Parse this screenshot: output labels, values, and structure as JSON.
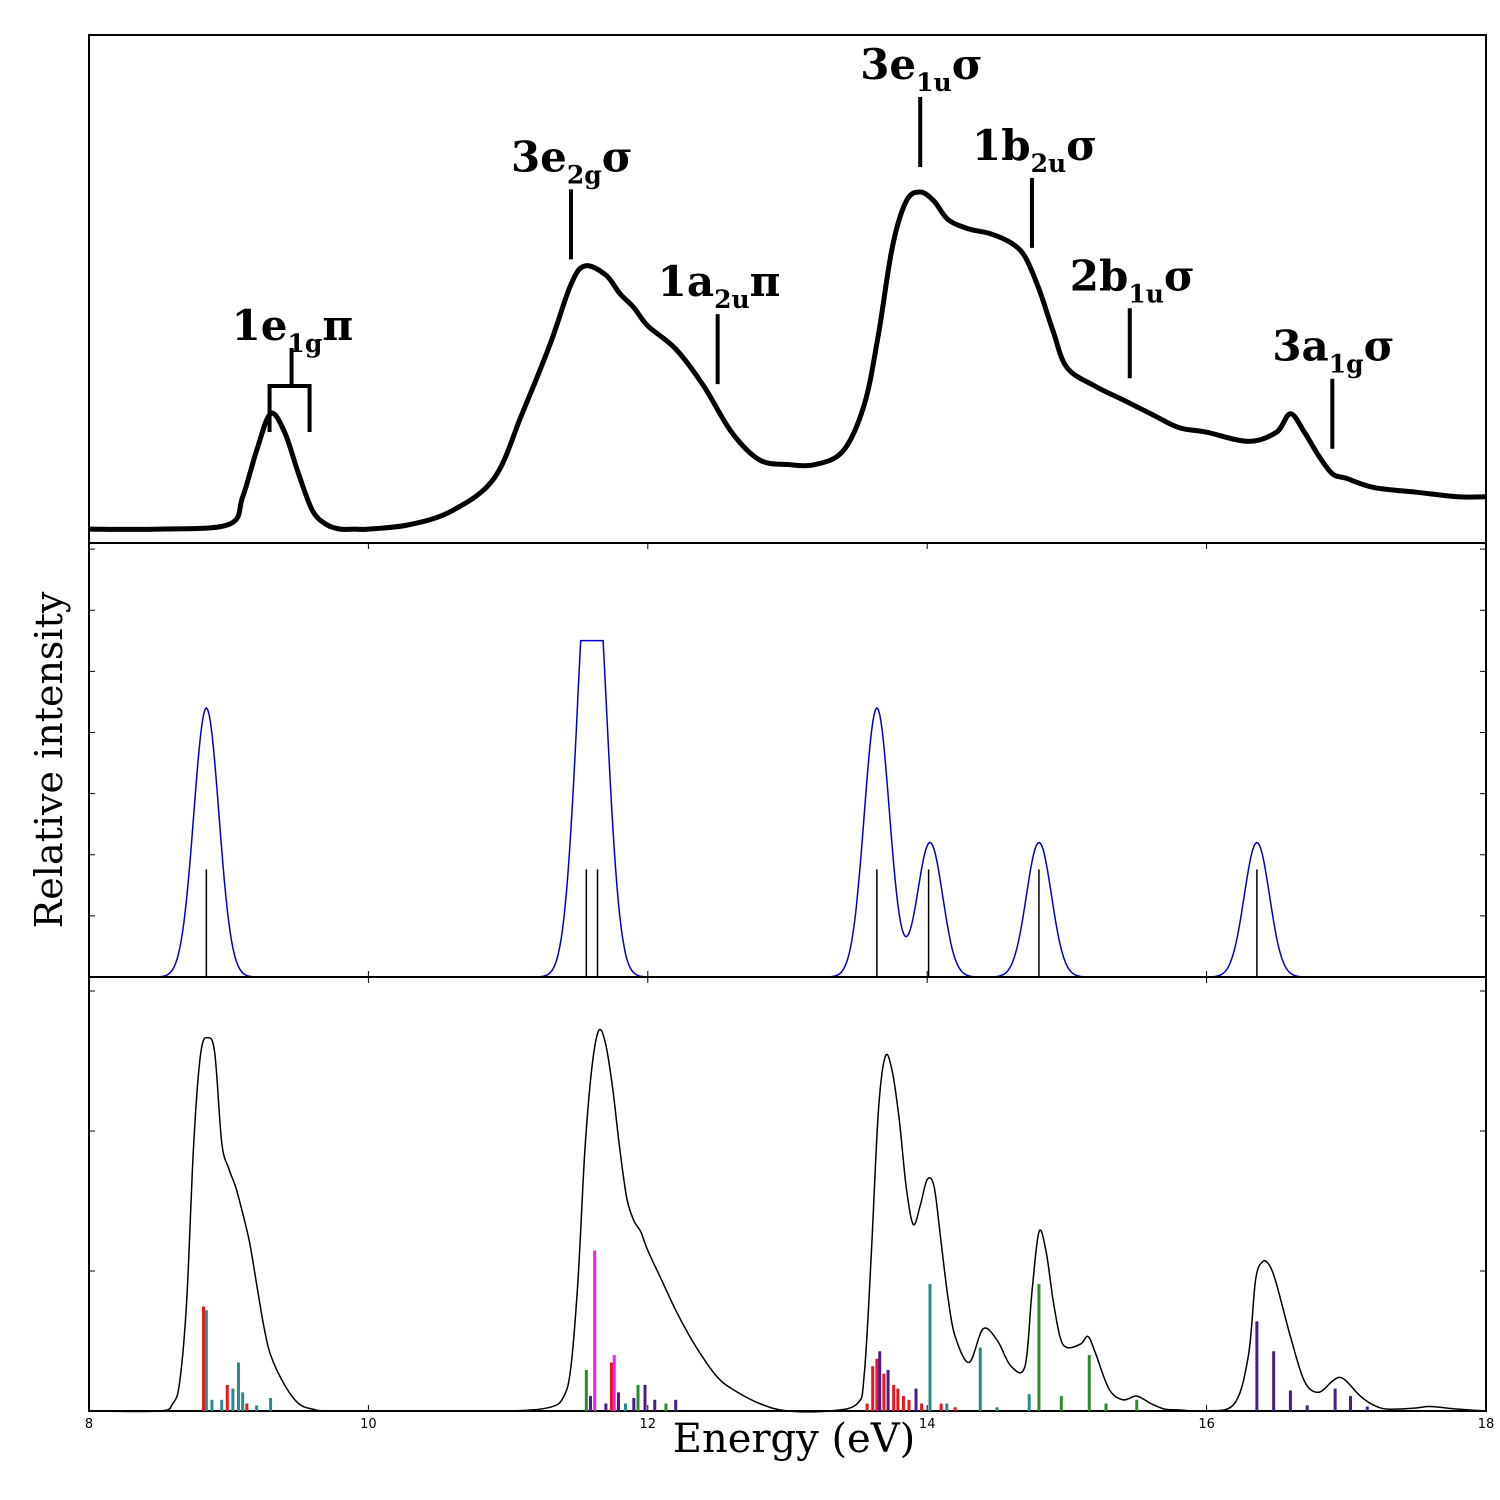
{
  "ylabel": "Relative intensity",
  "xlabel": "Energy (eV)",
  "xlim": [
    8,
    18
  ],
  "x_ticks": [
    8,
    10,
    12,
    14,
    16,
    18
  ],
  "colors": {
    "experiment": "#000000",
    "convolved": "#0000cc",
    "sticks": "#000000",
    "red": "#e8141e",
    "teal": "#2a8a8a",
    "green": "#2c8c2c",
    "purple": "#4b1a8c",
    "magenta": "#ee22ee"
  },
  "chart_data": [
    {
      "type": "line",
      "panel": "experimental spectrum",
      "ylim": [
        0,
        1.1
      ],
      "x": [
        8.0,
        8.5,
        9.0,
        9.1,
        9.2,
        9.3,
        9.4,
        9.5,
        9.6,
        9.7,
        9.8,
        9.9,
        10.0,
        10.3,
        10.6,
        10.9,
        11.1,
        11.3,
        11.45,
        11.55,
        11.7,
        11.8,
        11.9,
        12.0,
        12.2,
        12.4,
        12.6,
        12.8,
        13.0,
        13.2,
        13.4,
        13.55,
        13.65,
        13.75,
        13.85,
        13.95,
        14.05,
        14.15,
        14.3,
        14.45,
        14.6,
        14.7,
        14.8,
        14.9,
        15.0,
        15.2,
        15.4,
        15.6,
        15.8,
        16.0,
        16.3,
        16.5,
        16.6,
        16.7,
        16.8,
        16.9,
        17.0,
        17.2,
        17.5,
        17.8,
        18.0
      ],
      "y": [
        0.03,
        0.03,
        0.04,
        0.1,
        0.2,
        0.28,
        0.24,
        0.15,
        0.07,
        0.04,
        0.03,
        0.03,
        0.03,
        0.04,
        0.07,
        0.14,
        0.28,
        0.43,
        0.56,
        0.6,
        0.58,
        0.54,
        0.51,
        0.47,
        0.42,
        0.34,
        0.24,
        0.18,
        0.17,
        0.17,
        0.2,
        0.3,
        0.45,
        0.64,
        0.74,
        0.76,
        0.74,
        0.7,
        0.68,
        0.67,
        0.65,
        0.62,
        0.55,
        0.46,
        0.38,
        0.34,
        0.31,
        0.28,
        0.25,
        0.24,
        0.22,
        0.24,
        0.28,
        0.24,
        0.19,
        0.15,
        0.14,
        0.12,
        0.11,
        0.1,
        0.1
      ],
      "annotations": [
        {
          "text": "1e",
          "sub": "1g",
          "tail": "π",
          "x": 9.45
        },
        {
          "text": "3e",
          "sub": "2g",
          "tail": "σ",
          "x": 11.45
        },
        {
          "text": "1a",
          "sub": "2u",
          "tail": "π",
          "x": 12.5
        },
        {
          "text": "3e",
          "sub": "1u",
          "tail": "σ",
          "x": 13.95
        },
        {
          "text": "1b",
          "sub": "2u",
          "tail": "σ",
          "x": 14.75
        },
        {
          "text": "2b",
          "sub": "1u",
          "tail": "σ",
          "x": 15.45
        },
        {
          "text": "3a",
          "sub": "1g",
          "tail": "σ",
          "x": 16.9
        }
      ]
    },
    {
      "type": "line",
      "panel": "convolved theoretical spectrum with stick lines",
      "ylim": [
        0,
        1.0
      ],
      "series": [
        {
          "kind": "gaussian-sum",
          "width": 0.09,
          "peaks": [
            {
              "x": 8.84,
              "height": 1.0
            },
            {
              "x": 11.56,
              "height": 0.95
            },
            {
              "x": 11.64,
              "height": 0.95
            },
            {
              "x": 13.64,
              "height": 1.0
            },
            {
              "x": 14.02,
              "height": 0.5
            },
            {
              "x": 14.8,
              "height": 0.5
            },
            {
              "x": 16.36,
              "height": 0.5
            }
          ]
        }
      ],
      "sticks": [
        {
          "x": 8.84,
          "y": 0.4
        },
        {
          "x": 11.56,
          "y": 0.4
        },
        {
          "x": 11.64,
          "y": 0.4
        },
        {
          "x": 13.64,
          "y": 0.4
        },
        {
          "x": 14.01,
          "y": 0.4
        },
        {
          "x": 14.8,
          "y": 0.4
        },
        {
          "x": 16.36,
          "y": 0.4
        }
      ]
    },
    {
      "type": "line",
      "panel": "simulated spectrum with coloured sticks",
      "ylim": [
        0,
        1.0
      ],
      "envelope": {
        "x": [
          8.0,
          8.5,
          8.6,
          8.65,
          8.7,
          8.75,
          8.8,
          8.85,
          8.9,
          8.95,
          9.0,
          9.05,
          9.1,
          9.15,
          9.2,
          9.25,
          9.3,
          9.4,
          9.5,
          9.6,
          9.7,
          10.0,
          10.5,
          11.0,
          11.3,
          11.4,
          11.45,
          11.5,
          11.55,
          11.6,
          11.65,
          11.7,
          11.75,
          11.8,
          11.85,
          11.9,
          11.95,
          12.0,
          12.1,
          12.2,
          12.3,
          12.4,
          12.5,
          12.6,
          12.8,
          13.0,
          13.3,
          13.5,
          13.55,
          13.6,
          13.65,
          13.7,
          13.75,
          13.8,
          13.85,
          13.9,
          13.95,
          14.0,
          14.05,
          14.1,
          14.15,
          14.2,
          14.3,
          14.4,
          14.5,
          14.6,
          14.7,
          14.75,
          14.8,
          14.85,
          14.9,
          14.95,
          15.0,
          15.1,
          15.15,
          15.2,
          15.3,
          15.4,
          15.5,
          15.6,
          15.7,
          15.8,
          16.0,
          16.2,
          16.3,
          16.35,
          16.4,
          16.45,
          16.5,
          16.6,
          16.7,
          16.8,
          16.9,
          16.95,
          17.0,
          17.1,
          17.2,
          17.3,
          17.5,
          17.6,
          17.8,
          18.0
        ],
        "y": [
          0.0,
          0.0,
          0.02,
          0.08,
          0.3,
          0.72,
          0.96,
          1.0,
          0.96,
          0.72,
          0.65,
          0.6,
          0.53,
          0.45,
          0.34,
          0.23,
          0.15,
          0.07,
          0.02,
          0.005,
          0.0,
          0.0,
          0.0,
          0.0,
          0.01,
          0.04,
          0.12,
          0.35,
          0.7,
          0.92,
          1.02,
          0.98,
          0.86,
          0.7,
          0.57,
          0.51,
          0.48,
          0.43,
          0.35,
          0.27,
          0.2,
          0.14,
          0.09,
          0.06,
          0.02,
          0.0,
          0.0,
          0.02,
          0.1,
          0.42,
          0.8,
          0.95,
          0.91,
          0.78,
          0.6,
          0.5,
          0.55,
          0.62,
          0.6,
          0.45,
          0.3,
          0.2,
          0.13,
          0.22,
          0.19,
          0.12,
          0.12,
          0.32,
          0.48,
          0.43,
          0.3,
          0.2,
          0.17,
          0.18,
          0.2,
          0.16,
          0.06,
          0.03,
          0.04,
          0.02,
          0.005,
          0.003,
          0.0,
          0.02,
          0.15,
          0.35,
          0.4,
          0.39,
          0.34,
          0.2,
          0.08,
          0.05,
          0.08,
          0.09,
          0.08,
          0.04,
          0.015,
          0.005,
          0.008,
          0.012,
          0.005,
          0.0
        ]
      },
      "sticks": [
        {
          "x": 8.82,
          "y": 0.28,
          "color": "red"
        },
        {
          "x": 8.84,
          "y": 0.27,
          "color": "teal"
        },
        {
          "x": 8.88,
          "y": 0.03,
          "color": "teal"
        },
        {
          "x": 8.95,
          "y": 0.03,
          "color": "teal"
        },
        {
          "x": 8.99,
          "y": 0.07,
          "color": "red"
        },
        {
          "x": 9.03,
          "y": 0.06,
          "color": "teal"
        },
        {
          "x": 9.07,
          "y": 0.13,
          "color": "teal"
        },
        {
          "x": 9.1,
          "y": 0.05,
          "color": "teal"
        },
        {
          "x": 9.13,
          "y": 0.02,
          "color": "red"
        },
        {
          "x": 9.2,
          "y": 0.015,
          "color": "teal"
        },
        {
          "x": 9.3,
          "y": 0.035,
          "color": "teal"
        },
        {
          "x": 11.56,
          "y": 0.11,
          "color": "green"
        },
        {
          "x": 11.59,
          "y": 0.04,
          "color": "purple"
        },
        {
          "x": 11.62,
          "y": 0.43,
          "color": "magenta"
        },
        {
          "x": 11.7,
          "y": 0.02,
          "color": "purple"
        },
        {
          "x": 11.74,
          "y": 0.13,
          "color": "red"
        },
        {
          "x": 11.76,
          "y": 0.15,
          "color": "magenta"
        },
        {
          "x": 11.79,
          "y": 0.05,
          "color": "purple"
        },
        {
          "x": 11.84,
          "y": 0.02,
          "color": "teal"
        },
        {
          "x": 11.9,
          "y": 0.035,
          "color": "purple"
        },
        {
          "x": 11.93,
          "y": 0.07,
          "color": "green"
        },
        {
          "x": 11.98,
          "y": 0.07,
          "color": "purple"
        },
        {
          "x": 12.05,
          "y": 0.03,
          "color": "purple"
        },
        {
          "x": 12.13,
          "y": 0.02,
          "color": "green"
        },
        {
          "x": 12.2,
          "y": 0.03,
          "color": "purple"
        },
        {
          "x": 13.57,
          "y": 0.02,
          "color": "red"
        },
        {
          "x": 13.61,
          "y": 0.12,
          "color": "red"
        },
        {
          "x": 13.64,
          "y": 0.14,
          "color": "red"
        },
        {
          "x": 13.66,
          "y": 0.16,
          "color": "purple"
        },
        {
          "x": 13.69,
          "y": 0.1,
          "color": "red"
        },
        {
          "x": 13.72,
          "y": 0.11,
          "color": "purple"
        },
        {
          "x": 13.76,
          "y": 0.07,
          "color": "red"
        },
        {
          "x": 13.79,
          "y": 0.06,
          "color": "red"
        },
        {
          "x": 13.83,
          "y": 0.04,
          "color": "red"
        },
        {
          "x": 13.87,
          "y": 0.03,
          "color": "red"
        },
        {
          "x": 13.92,
          "y": 0.06,
          "color": "purple"
        },
        {
          "x": 13.96,
          "y": 0.02,
          "color": "red"
        },
        {
          "x": 14.02,
          "y": 0.34,
          "color": "teal"
        },
        {
          "x": 14.1,
          "y": 0.02,
          "color": "red"
        },
        {
          "x": 14.14,
          "y": 0.02,
          "color": "teal"
        },
        {
          "x": 14.2,
          "y": 0.01,
          "color": "red"
        },
        {
          "x": 14.38,
          "y": 0.17,
          "color": "teal"
        },
        {
          "x": 14.5,
          "y": 0.01,
          "color": "teal"
        },
        {
          "x": 14.73,
          "y": 0.045,
          "color": "teal"
        },
        {
          "x": 14.8,
          "y": 0.34,
          "color": "green"
        },
        {
          "x": 14.96,
          "y": 0.04,
          "color": "green"
        },
        {
          "x": 15.16,
          "y": 0.15,
          "color": "green"
        },
        {
          "x": 15.28,
          "y": 0.02,
          "color": "green"
        },
        {
          "x": 15.5,
          "y": 0.03,
          "color": "green"
        },
        {
          "x": 16.36,
          "y": 0.24,
          "color": "purple"
        },
        {
          "x": 16.48,
          "y": 0.16,
          "color": "purple"
        },
        {
          "x": 16.6,
          "y": 0.055,
          "color": "purple"
        },
        {
          "x": 16.72,
          "y": 0.015,
          "color": "purple"
        },
        {
          "x": 16.92,
          "y": 0.06,
          "color": "purple"
        },
        {
          "x": 17.03,
          "y": 0.04,
          "color": "purple"
        },
        {
          "x": 17.15,
          "y": 0.012,
          "color": "purple"
        }
      ]
    }
  ]
}
